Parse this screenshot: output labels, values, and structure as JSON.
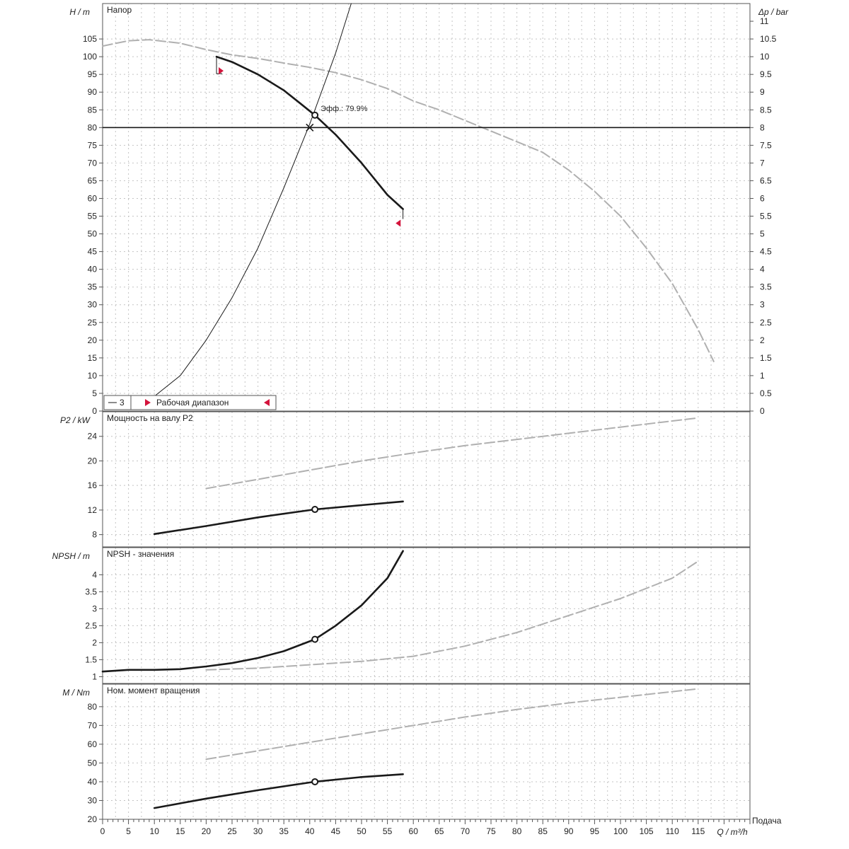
{
  "colors": {
    "curve": "#1a1a1a",
    "ghost": "#b0b0b0",
    "grid": "#c4c4c4",
    "axis": "#555555",
    "marker": "#d4143c",
    "background": "#ffffff"
  },
  "chart_data": [
    {
      "type": "line",
      "title": "Напор",
      "ylabel": "H / m",
      "ylabel_right": "Δp / bar",
      "xlabel": "Q / m³/h",
      "xlabel_right": "Подача",
      "xlim": [
        0,
        125
      ],
      "ylim": [
        0,
        115
      ],
      "yticks": [
        0,
        5,
        10,
        15,
        20,
        25,
        30,
        35,
        40,
        45,
        50,
        55,
        60,
        65,
        70,
        75,
        80,
        85,
        90,
        95,
        100,
        105
      ],
      "yticks_right": [
        "0",
        "0.5",
        "1",
        "1.5",
        "2",
        "2.5",
        "3",
        "3.5",
        "4",
        "4.5",
        "5",
        "5.5",
        "6",
        "6.5",
        "7",
        "7.5",
        "8",
        "8.5",
        "9",
        "9.5",
        "10",
        "10.5",
        "11"
      ],
      "xticks": [
        0,
        5,
        10,
        15,
        20,
        25,
        30,
        35,
        40,
        45,
        50,
        55,
        60,
        65,
        70,
        75,
        80,
        85,
        90,
        95,
        100,
        105,
        110,
        115
      ],
      "xlabel_right_unit": "m³/h",
      "grid": true,
      "duty_head": 80,
      "operating_point": {
        "x": 41,
        "y": 83.5
      },
      "operating_point_label": "Эфф.: 79.9%",
      "legend": [
        "3",
        "Рабочая диапазон"
      ],
      "series": [
        {
          "role": "duty-curve",
          "x": [
            22,
            25,
            30,
            35,
            38,
            41,
            45,
            50,
            55,
            58
          ],
          "y": [
            100,
            98.5,
            95,
            90.5,
            87,
            83.5,
            78,
            70,
            61,
            57
          ]
        },
        {
          "role": "max-curve",
          "x": [
            0,
            5,
            9,
            15,
            20,
            25,
            30,
            35,
            40,
            45,
            50,
            55,
            60,
            65,
            70,
            75,
            80,
            85,
            90,
            95,
            100,
            105,
            110,
            115,
            118
          ],
          "y": [
            103,
            104.5,
            104.8,
            103.8,
            102,
            100.5,
            99.5,
            98.2,
            97,
            95.5,
            93.5,
            91,
            87.5,
            85,
            82,
            79,
            76,
            73,
            68,
            62,
            55,
            46,
            36,
            23,
            14
          ]
        },
        {
          "role": "system-curve",
          "x": [
            9,
            15,
            20,
            25,
            30,
            35,
            40,
            45,
            48
          ],
          "y": [
            3,
            10,
            20,
            32,
            46,
            63,
            81,
            101,
            115
          ]
        }
      ],
      "range_start": {
        "x": 22,
        "y": 96
      },
      "range_end": {
        "x": 57,
        "y": 53
      },
      "duty_marker": {
        "x": 40,
        "y": 80
      }
    },
    {
      "type": "line",
      "title": "Мощность на валу P2",
      "ylabel": "P2 / kW",
      "ylim": [
        6,
        28
      ],
      "yticks": [
        8,
        12,
        16,
        20,
        24
      ],
      "grid": true,
      "operating_point": {
        "x": 41,
        "y": 12.1
      },
      "series": [
        {
          "role": "duty-curve",
          "x": [
            10,
            20,
            30,
            41,
            50,
            58
          ],
          "y": [
            8.1,
            9.4,
            10.8,
            12.1,
            12.8,
            13.4
          ]
        },
        {
          "role": "max-curve",
          "x": [
            20,
            30,
            40,
            50,
            60,
            70,
            80,
            90,
            100,
            110,
            115
          ],
          "y": [
            15.5,
            17.0,
            18.5,
            20.0,
            21.3,
            22.5,
            23.5,
            24.5,
            25.5,
            26.5,
            27.0
          ]
        }
      ]
    },
    {
      "type": "line",
      "title": "NPSH - значения",
      "ylabel": "NPSH / m",
      "ylim": [
        0.8,
        4.8
      ],
      "yticks": [
        1,
        1.5,
        2,
        2.5,
        3,
        3.5,
        4
      ],
      "grid": true,
      "operating_point": {
        "x": 41,
        "y": 2.1
      },
      "series": [
        {
          "role": "duty-curve",
          "x": [
            0,
            5,
            10,
            15,
            20,
            25,
            30,
            35,
            41,
            45,
            50,
            55,
            58
          ],
          "y": [
            1.15,
            1.2,
            1.2,
            1.22,
            1.3,
            1.4,
            1.55,
            1.75,
            2.1,
            2.5,
            3.1,
            3.9,
            4.7
          ]
        },
        {
          "role": "max-curve",
          "x": [
            20,
            30,
            40,
            50,
            60,
            70,
            80,
            90,
            100,
            110,
            115
          ],
          "y": [
            1.2,
            1.25,
            1.35,
            1.45,
            1.6,
            1.9,
            2.3,
            2.8,
            3.3,
            3.9,
            4.4
          ]
        }
      ]
    },
    {
      "type": "line",
      "title": "Ном. момент вращения",
      "ylabel": "M / Nm",
      "ylim": [
        20,
        92
      ],
      "yticks": [
        20,
        30,
        40,
        50,
        60,
        70,
        80
      ],
      "grid": true,
      "operating_point": {
        "x": 41,
        "y": 40
      },
      "series": [
        {
          "role": "duty-curve",
          "x": [
            10,
            20,
            30,
            41,
            50,
            58
          ],
          "y": [
            26,
            31,
            35.5,
            40,
            42.5,
            44
          ]
        },
        {
          "role": "max-curve",
          "x": [
            20,
            30,
            40,
            50,
            60,
            70,
            80,
            90,
            100,
            110,
            115
          ],
          "y": [
            52,
            56.5,
            61,
            65.5,
            70,
            74.5,
            78.5,
            82,
            85,
            88,
            89.5
          ]
        }
      ]
    }
  ]
}
